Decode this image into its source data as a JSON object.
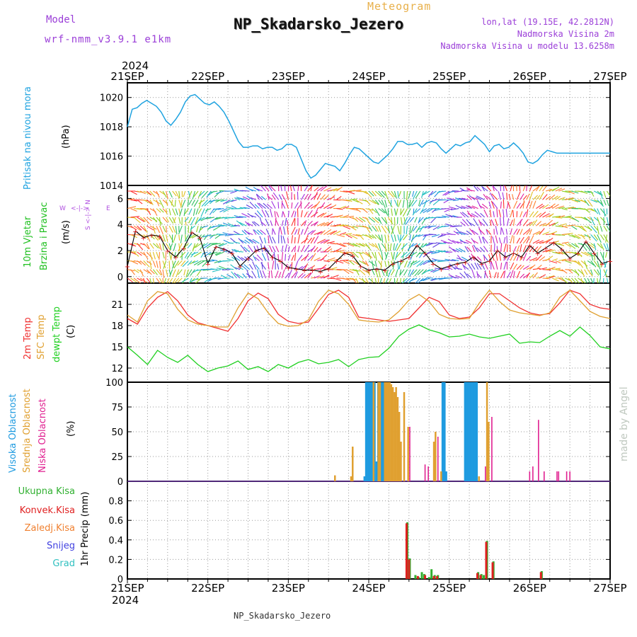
{
  "header": {
    "model_label": "Model",
    "model_name": "wrf-nmm_v3.9.1  e1km",
    "meteogram_label": "Meteogram",
    "station": "NP_Skadarsko_Jezero",
    "lonlat": "lon,lat (19.15E, 42.2812N)",
    "elevation": "Nadmorska Visina 2m",
    "model_elevation": "Nadmorska Visina u modelu 13.6258m",
    "footer": "NP_Skadarsko_Jezero",
    "credit": "made by Angel"
  },
  "colors": {
    "pressure": "#1fa3e0",
    "wind_speed": "#e02020",
    "temp2m": "#f03030",
    "sfc_temp": "#e0a030",
    "dewpt": "#20d020",
    "high_cloud": "#1f9be0",
    "mid_cloud": "#e0a030",
    "low_cloud": "#e02090",
    "total_precip": "#30b030",
    "convective": "#e02020",
    "freezing": "#f08030",
    "snow": "#4040e0",
    "hail": "#30c0c0",
    "labels_purple": "#9b3fd8",
    "wind_dir_label": "#b050e0"
  },
  "time_axis": {
    "year": "2024",
    "labels": [
      "21SEP",
      "22SEP",
      "23SEP",
      "24SEP",
      "25SEP",
      "26SEP",
      "27SEP"
    ]
  },
  "chart_data": [
    {
      "type": "line",
      "title": "Pritisak na nivou mora",
      "ylabel": "(hPa)",
      "ylim": [
        1014,
        1021
      ],
      "yticks": [
        1014,
        1016,
        1018,
        1020
      ],
      "grid": true,
      "x_days": [
        0.0,
        0.06,
        0.12,
        0.18,
        0.24,
        0.3,
        0.36,
        0.42,
        0.48,
        0.54,
        0.6,
        0.66,
        0.72,
        0.78,
        0.84,
        0.9,
        0.96,
        1.02,
        1.08,
        1.14,
        1.2,
        1.26,
        1.32,
        1.38,
        1.44,
        1.5,
        1.56,
        1.62,
        1.68,
        1.74,
        1.8,
        1.86,
        1.92,
        1.98,
        2.04,
        2.1,
        2.16,
        2.22,
        2.28,
        2.34,
        2.4,
        2.46,
        2.52,
        2.58,
        2.64,
        2.7,
        2.76,
        2.82,
        2.88,
        2.94,
        3.0,
        3.06,
        3.12,
        3.18,
        3.24,
        3.3,
        3.36,
        3.42,
        3.48,
        3.54,
        3.6,
        3.66,
        3.72,
        3.78,
        3.84,
        3.9,
        3.96,
        4.02,
        4.08,
        4.14,
        4.2,
        4.26,
        4.32,
        4.38,
        4.44,
        4.5,
        4.56,
        4.62,
        4.68,
        4.74,
        4.8,
        4.86,
        4.92,
        4.98,
        5.04,
        5.1,
        5.16,
        5.22,
        5.28,
        5.34,
        5.4,
        5.46,
        5.52,
        5.58,
        5.64,
        5.7,
        5.76,
        5.82,
        5.88,
        5.94,
        6.0
      ],
      "values": [
        1018.0,
        1019.2,
        1019.3,
        1019.6,
        1019.8,
        1019.6,
        1019.4,
        1019.0,
        1018.4,
        1018.1,
        1018.5,
        1019.0,
        1019.7,
        1020.1,
        1020.2,
        1019.9,
        1019.6,
        1019.5,
        1019.7,
        1019.4,
        1019.0,
        1018.4,
        1017.7,
        1017.0,
        1016.6,
        1016.6,
        1016.7,
        1016.7,
        1016.5,
        1016.6,
        1016.6,
        1016.4,
        1016.5,
        1016.8,
        1016.8,
        1016.6,
        1015.8,
        1015.0,
        1014.5,
        1014.7,
        1015.1,
        1015.5,
        1015.4,
        1015.3,
        1015.0,
        1015.5,
        1016.1,
        1016.6,
        1016.5,
        1016.2,
        1015.9,
        1015.6,
        1015.5,
        1015.8,
        1016.1,
        1016.5,
        1017.0,
        1017.0,
        1016.8,
        1016.8,
        1016.9,
        1016.6,
        1016.9,
        1017.0,
        1016.9,
        1016.5,
        1016.2,
        1016.5,
        1016.8,
        1016.7,
        1016.9,
        1017.0,
        1017.4,
        1017.1,
        1016.8,
        1016.3,
        1016.7,
        1016.8,
        1016.5,
        1016.6,
        1016.9,
        1016.6,
        1016.2,
        1015.6,
        1015.5,
        1015.7,
        1016.1,
        1016.4,
        1016.3,
        1016.2,
        1016.2,
        1016.2,
        1016.2,
        1016.2,
        1016.2,
        1016.2,
        1016.2,
        1016.2,
        1016.2,
        1016.2,
        1016.2
      ]
    },
    {
      "type": "line",
      "title": "10m Vjetar Brzina i Pravac",
      "ylabel": "(m/s)",
      "ylim": [
        -0.5,
        7
      ],
      "yticks": [
        0,
        2,
        4,
        6
      ],
      "grid": true,
      "direction_legend": {
        "w": "W",
        "e": "E",
        "s": "S",
        "n": "N",
        "arrow": "<-|->"
      },
      "x_days": [
        0.0,
        0.1,
        0.2,
        0.3,
        0.4,
        0.5,
        0.6,
        0.7,
        0.8,
        0.9,
        1.0,
        1.1,
        1.2,
        1.3,
        1.4,
        1.5,
        1.6,
        1.7,
        1.8,
        1.9,
        2.0,
        2.1,
        2.2,
        2.3,
        2.4,
        2.5,
        2.6,
        2.7,
        2.8,
        2.9,
        3.0,
        3.1,
        3.2,
        3.3,
        3.4,
        3.5,
        3.6,
        3.7,
        3.8,
        3.9,
        4.0,
        4.1,
        4.2,
        4.3,
        4.4,
        4.5,
        4.6,
        4.7,
        4.8,
        4.9,
        5.0,
        5.1,
        5.2,
        5.3,
        5.4,
        5.5,
        5.6,
        5.7,
        5.8,
        5.9,
        6.0
      ],
      "values": [
        0.8,
        3.5,
        3.0,
        3.2,
        3.1,
        2.0,
        1.5,
        2.2,
        3.4,
        3.0,
        1.0,
        2.3,
        2.1,
        1.8,
        0.8,
        1.4,
        2.0,
        2.2,
        1.5,
        1.2,
        0.7,
        0.6,
        0.5,
        0.5,
        0.4,
        0.6,
        1.2,
        1.8,
        1.6,
        0.8,
        0.5,
        0.6,
        0.5,
        1.0,
        1.2,
        1.5,
        2.4,
        1.8,
        1.0,
        0.6,
        0.8,
        1.0,
        1.1,
        1.5,
        1.0,
        1.2,
        2.0,
        1.5,
        1.8,
        1.5,
        2.4,
        1.8,
        2.2,
        2.6,
        2.1,
        1.4,
        1.8,
        2.7,
        1.8,
        1.0,
        1.2
      ]
    },
    {
      "type": "line",
      "ylabel": "(C)",
      "legend": [
        "2m Temp",
        "SFC Temp",
        "dewpt Temp"
      ],
      "ylim": [
        10,
        24
      ],
      "yticks": [
        12,
        15,
        18,
        21
      ],
      "grid": true,
      "x_days": [
        0.0,
        0.125,
        0.25,
        0.375,
        0.5,
        0.625,
        0.75,
        0.875,
        1.0,
        1.125,
        1.25,
        1.375,
        1.5,
        1.625,
        1.75,
        1.875,
        2.0,
        2.125,
        2.25,
        2.375,
        2.5,
        2.625,
        2.75,
        2.875,
        3.0,
        3.125,
        3.25,
        3.375,
        3.5,
        3.625,
        3.75,
        3.875,
        4.0,
        4.125,
        4.25,
        4.375,
        4.5,
        4.625,
        4.75,
        4.875,
        5.0,
        5.125,
        5.25,
        5.375,
        5.5,
        5.625,
        5.75,
        5.875,
        6.0
      ],
      "series": [
        {
          "name": "2m Temp",
          "values": [
            19.0,
            18.2,
            20.5,
            22.0,
            22.8,
            21.5,
            19.5,
            18.4,
            18.0,
            17.6,
            17.2,
            19.0,
            21.5,
            22.6,
            21.8,
            19.6,
            18.6,
            18.3,
            18.5,
            20.4,
            22.4,
            23.0,
            22.0,
            19.2,
            19.0,
            18.8,
            18.6,
            18.8,
            19.0,
            20.5,
            22.0,
            21.4,
            19.5,
            19.0,
            19.2,
            20.5,
            22.5,
            22.5,
            21.5,
            20.5,
            19.8,
            19.5,
            19.7,
            21.2,
            23.0,
            22.5,
            21.0,
            20.5,
            20.3
          ]
        },
        {
          "name": "SFC Temp",
          "values": [
            19.5,
            18.5,
            21.5,
            22.8,
            22.5,
            20.3,
            18.8,
            18.2,
            18.0,
            17.8,
            17.8,
            20.5,
            22.6,
            21.8,
            19.8,
            18.3,
            17.9,
            18.0,
            18.8,
            21.4,
            23.0,
            22.5,
            21.0,
            18.8,
            18.6,
            18.5,
            18.8,
            20.0,
            21.6,
            22.4,
            21.4,
            19.6,
            19.0,
            18.9,
            19.0,
            21.2,
            23.0,
            21.4,
            20.2,
            19.8,
            19.6,
            19.4,
            19.8,
            22.0,
            23.0,
            21.5,
            20.0,
            19.3,
            19.0
          ]
        },
        {
          "name": "dewpt Temp",
          "values": [
            15.0,
            13.8,
            12.5,
            14.5,
            13.5,
            12.8,
            13.8,
            12.5,
            11.5,
            12.0,
            12.3,
            13.0,
            11.8,
            12.2,
            11.5,
            12.5,
            12.0,
            12.8,
            13.2,
            12.6,
            12.8,
            13.2,
            12.2,
            13.2,
            13.5,
            13.6,
            14.8,
            16.5,
            17.5,
            18.1,
            17.4,
            17.0,
            16.4,
            16.5,
            16.8,
            16.4,
            16.2,
            16.5,
            16.8,
            15.5,
            15.7,
            15.6,
            16.5,
            17.3,
            16.5,
            17.8,
            16.6,
            15.0,
            14.7
          ]
        }
      ]
    },
    {
      "type": "bar",
      "ylabel": "(%)",
      "legend": [
        "Visoka Oblacnost",
        "Srednja Oblacnost",
        "Niska Oblacnost"
      ],
      "ylim": [
        0,
        100
      ],
      "yticks": [
        0,
        25,
        50,
        75,
        100
      ],
      "grid": true,
      "series": [
        {
          "name": "Visoka Oblacnost",
          "x_days": [
            2.95,
            2.97,
            2.99,
            3.01,
            3.03,
            3.05,
            3.07,
            3.1,
            3.12,
            3.14,
            3.16,
            3.18,
            3.92,
            3.94,
            3.96,
            4.2,
            4.22,
            4.24,
            4.26,
            4.28,
            4.3,
            4.32,
            4.34
          ],
          "values": [
            5,
            100,
            100,
            100,
            100,
            100,
            100,
            20,
            100,
            100,
            100,
            100,
            100,
            100,
            10,
            100,
            100,
            100,
            100,
            100,
            100,
            100,
            100
          ]
        },
        {
          "name": "Srednja Oblacnost",
          "x_days": [
            2.58,
            2.78,
            2.8,
            3.06,
            3.12,
            3.14,
            3.2,
            3.22,
            3.24,
            3.26,
            3.28,
            3.3,
            3.32,
            3.34,
            3.36,
            3.38,
            3.4,
            3.44,
            3.49,
            3.81,
            3.83,
            3.9,
            4.37,
            4.47,
            4.49
          ],
          "values": [
            6,
            5,
            35,
            100,
            100,
            100,
            100,
            100,
            100,
            100,
            98,
            95,
            90,
            95,
            85,
            70,
            40,
            90,
            55,
            40,
            50,
            10,
            5,
            100,
            60
          ]
        },
        {
          "name": "Niska Oblacnost",
          "x_days": [
            3.51,
            3.7,
            3.74,
            3.86,
            4.45,
            4.53,
            5.0,
            5.04,
            5.11,
            5.18,
            5.34,
            5.36,
            5.46,
            5.5
          ],
          "values": [
            55,
            17,
            15,
            45,
            15,
            65,
            10,
            15,
            62,
            10,
            10,
            10,
            10,
            10
          ]
        }
      ]
    },
    {
      "type": "bar",
      "ylabel": "1hr Precip (mm)",
      "legend": [
        "Ukupna Kisa",
        "Konvek.Kisa",
        "Zaledj.Kisa",
        "Snijeg",
        "Grad"
      ],
      "ylim": [
        0,
        1.0
      ],
      "yticks": [
        0,
        0.2,
        0.4,
        0.6,
        0.8
      ],
      "grid": true,
      "series": [
        {
          "name": "Ukupna Kisa",
          "x_days": [
            3.48,
            3.51,
            3.58,
            3.62,
            3.66,
            3.69,
            3.75,
            3.78,
            3.82,
            3.86,
            4.36,
            4.4,
            4.43,
            4.47,
            4.55,
            5.15
          ],
          "values": [
            0.58,
            0.21,
            0.04,
            0.02,
            0.07,
            0.05,
            0.02,
            0.1,
            0.04,
            0.04,
            0.07,
            0.05,
            0.04,
            0.39,
            0.18,
            0.08
          ]
        },
        {
          "name": "Konvek.Kisa",
          "x_days": [
            3.47,
            3.5,
            3.61,
            3.7,
            3.81,
            3.85,
            4.35,
            4.39,
            4.46,
            4.54,
            5.14
          ],
          "values": [
            0.57,
            0.2,
            0.03,
            0.04,
            0.03,
            0.03,
            0.06,
            0.04,
            0.38,
            0.17,
            0.07
          ]
        }
      ]
    }
  ]
}
